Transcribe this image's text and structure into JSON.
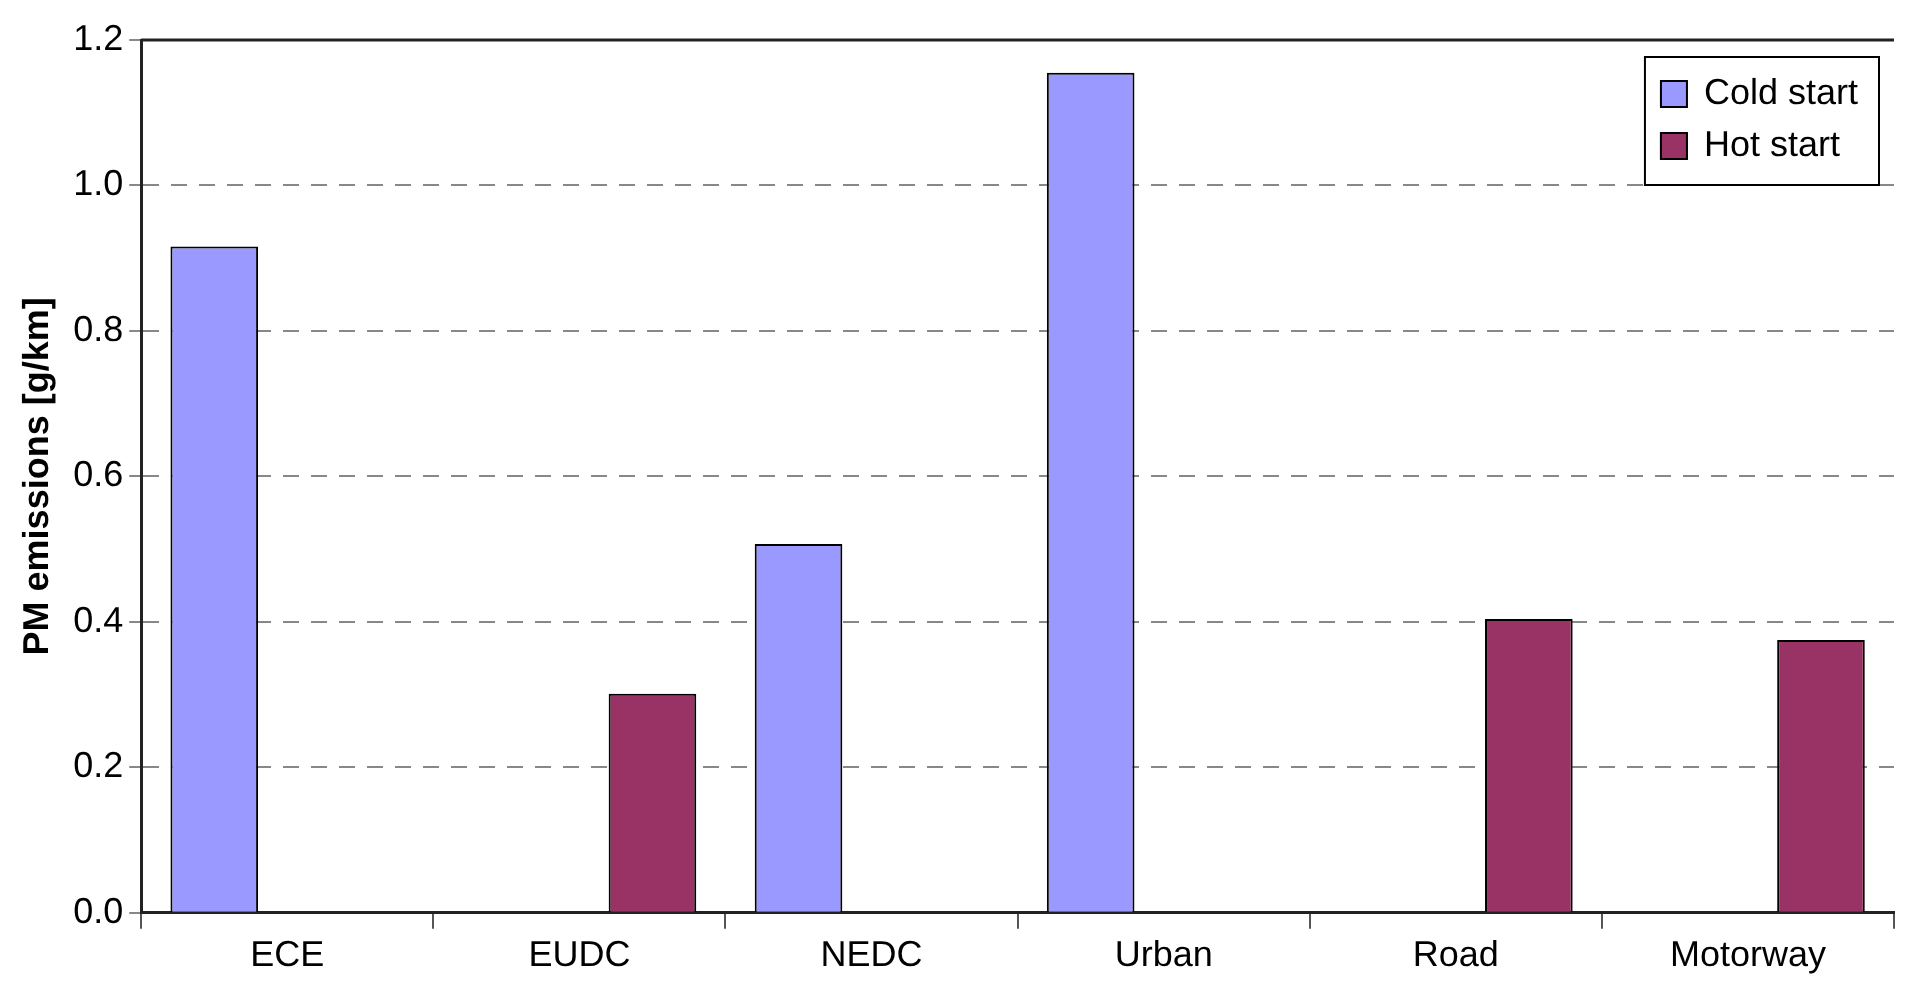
{
  "chart_data": {
    "type": "bar",
    "ylabel": "PM emissions [g/km]",
    "categories": [
      "ECE",
      "EUDC",
      "NEDC",
      "Urban",
      "Road",
      "Motorway"
    ],
    "series": [
      {
        "name": "Cold start",
        "color": "#9999ff",
        "values": [
          0.916,
          null,
          0.507,
          1.155,
          null,
          null
        ]
      },
      {
        "name": "Hot start",
        "color": "#993366",
        "values": [
          null,
          0.301,
          null,
          null,
          0.404,
          0.375
        ]
      }
    ],
    "ylim": [
      0,
      1.2
    ],
    "yticks": [
      {
        "value": 0,
        "label": "0.0"
      },
      {
        "value": 0.2,
        "label": "0.2"
      },
      {
        "value": 0.4,
        "label": "0.4"
      },
      {
        "value": 0.6,
        "label": "0.6"
      },
      {
        "value": 0.8,
        "label": "0.8"
      },
      {
        "value": 1,
        "label": "1.0"
      },
      {
        "value": 1.2,
        "label": "1.2"
      }
    ],
    "grid": "y",
    "legend": "top right"
  }
}
